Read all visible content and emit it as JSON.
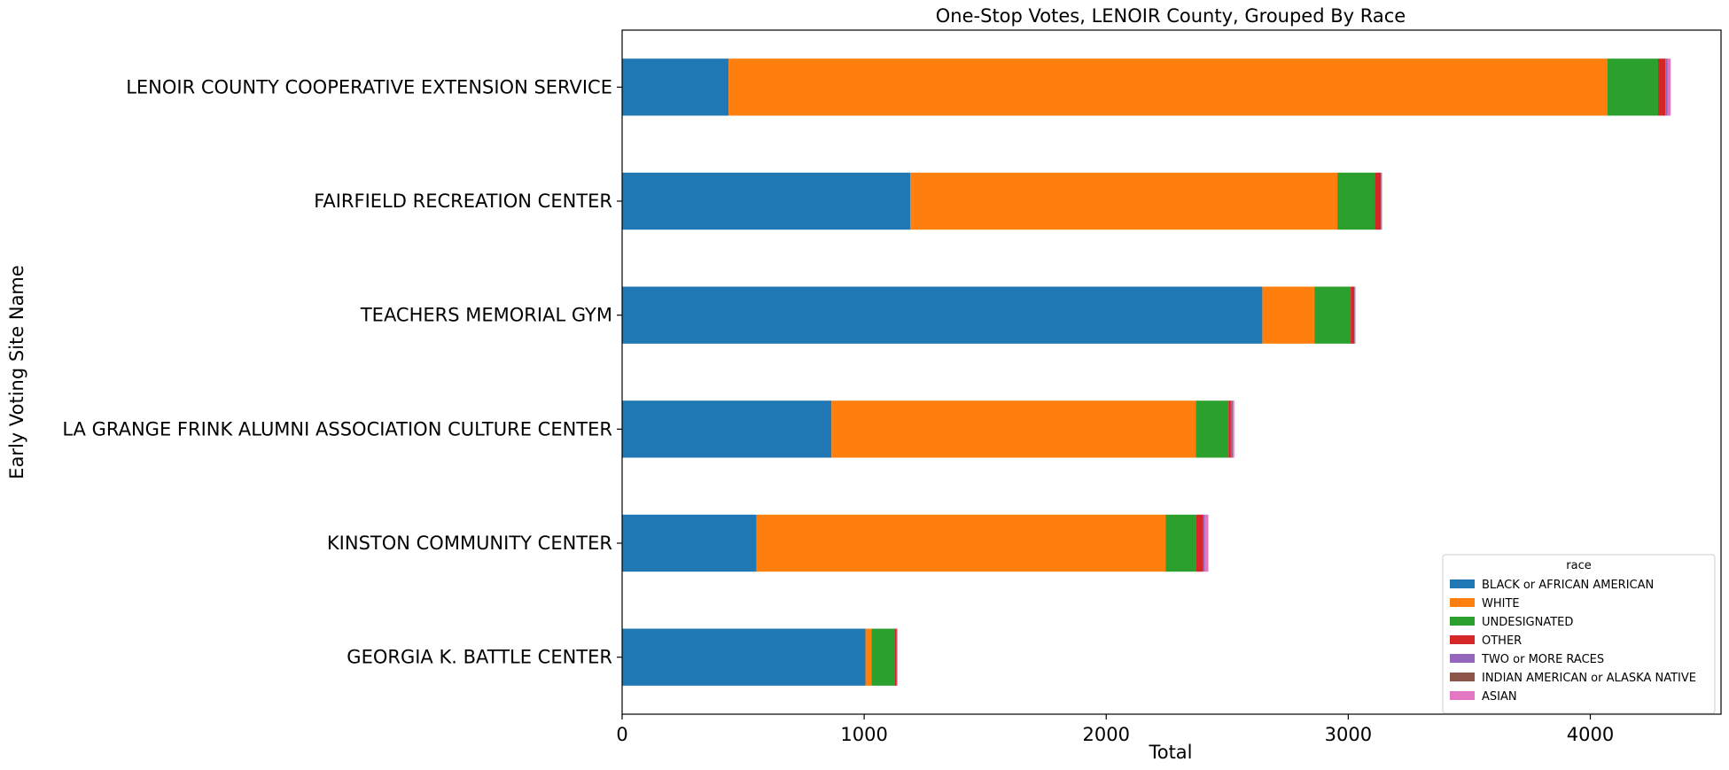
{
  "chart_data": {
    "type": "bar",
    "orientation": "horizontal",
    "stacked": true,
    "title": "One-Stop Votes, LENOIR County, Grouped By Race",
    "xlabel": "Total",
    "ylabel": "Early Voting Site Name",
    "xlim": [
      0,
      4540
    ],
    "xticks": [
      0,
      1000,
      2000,
      3000,
      4000
    ],
    "grid": false,
    "legend": {
      "title": "race",
      "placement": "lower right"
    },
    "categories": [
      "LENOIR COUNTY COOPERATIVE EXTENSION SERVICE",
      "FAIRFIELD RECREATION CENTER",
      "TEACHERS MEMORIAL GYM",
      "LA GRANGE FRINK ALUMNI ASSOCIATION CULTURE CENTER",
      "KINSTON COMMUNITY CENTER",
      "GEORGIA K. BATTLE CENTER"
    ],
    "series": [
      {
        "name": "BLACK or AFRICAN AMERICAN",
        "color": "#1f77b4",
        "values": [
          440,
          1190,
          2645,
          865,
          555,
          1005
        ]
      },
      {
        "name": "WHITE",
        "color": "#ff7f0e",
        "values": [
          3630,
          1765,
          215,
          1505,
          1690,
          25
        ]
      },
      {
        "name": "UNDESIGNATED",
        "color": "#2ca02c",
        "values": [
          210,
          155,
          150,
          135,
          125,
          95
        ]
      },
      {
        "name": "OTHER",
        "color": "#d62728",
        "values": [
          30,
          25,
          15,
          10,
          30,
          8
        ]
      },
      {
        "name": "TWO or MORE RACES",
        "color": "#9467bd",
        "values": [
          8,
          2,
          2,
          6,
          6,
          2
        ]
      },
      {
        "name": "INDIAN AMERICAN or ALASKA NATIVE",
        "color": "#8c564b",
        "values": [
          2,
          1,
          1,
          2,
          2,
          1
        ]
      },
      {
        "name": "ASIAN",
        "color": "#e377c2",
        "values": [
          12,
          2,
          2,
          6,
          14,
          2
        ]
      }
    ]
  }
}
